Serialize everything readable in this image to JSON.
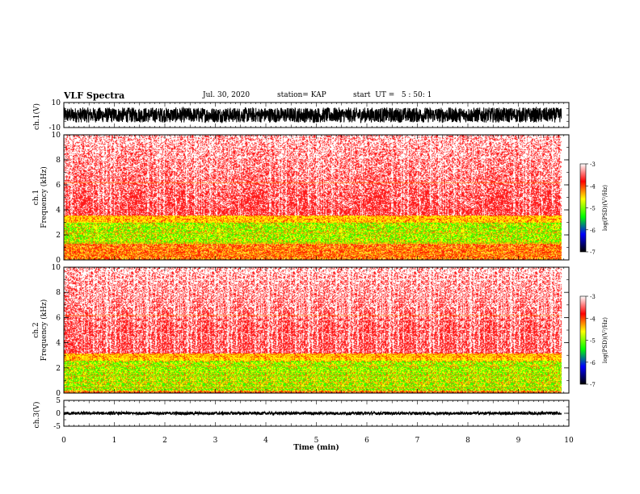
{
  "header": {
    "title": "VLF Spectra",
    "date": "Jul. 30, 2020",
    "station": "station= KAP",
    "start": "start  UT =   5 : 50: 1"
  },
  "chart_data": [
    {
      "type": "line",
      "panel": "waveform-ch1",
      "ylabel": "ch.1(V)",
      "ylim": [
        -10,
        10
      ],
      "ytick_labels": [
        "10",
        "-10"
      ],
      "xlim": [
        0,
        10
      ],
      "series": [
        {
          "x_range": [
            0,
            9.85
          ],
          "amplitude_range": [
            -6,
            6
          ]
        }
      ]
    },
    {
      "type": "heatmap",
      "panel": "spectrogram-ch1",
      "ylabel_lines": [
        "ch.1",
        "Frequency  (kHz)"
      ],
      "ylim": [
        0,
        10
      ],
      "ytick_labels": [
        "0",
        "2",
        "4",
        "6",
        "8",
        "10"
      ],
      "xlim": [
        0,
        10
      ],
      "x_data_range": [
        0,
        9.85
      ],
      "band_edges_khz": {
        "green_low": 1.3,
        "green_high": 3.0,
        "yellow_top": 3.6,
        "red_top": 10
      },
      "colorbar": {
        "label": "log(PSD)(V²/Hz)",
        "ticks": [
          "-3",
          "-4",
          "-5",
          "-6",
          "-7"
        ],
        "range": [
          -7,
          -3
        ]
      }
    },
    {
      "type": "heatmap",
      "panel": "spectrogram-ch2",
      "ylabel_lines": [
        "ch.2",
        "Frequency  (kHz)"
      ],
      "ylim": [
        0,
        10
      ],
      "ytick_labels": [
        "0",
        "2",
        "4",
        "6",
        "8",
        "10"
      ],
      "xlim": [
        0,
        10
      ],
      "x_data_range": [
        0,
        9.85
      ],
      "band_edges_khz": {
        "green_low": 0.2,
        "green_high": 2.6,
        "yellow_top": 3.2,
        "red_top": 10
      },
      "colorbar": {
        "label": "log(PSD)(V²/Hz)",
        "ticks": [
          "-3",
          "-4",
          "-5",
          "-6",
          "-7"
        ],
        "range": [
          -7,
          -3
        ]
      }
    },
    {
      "type": "line",
      "panel": "waveform-ch3",
      "ylabel": "ch.3(V)",
      "ylim": [
        -5,
        5
      ],
      "ytick_labels": [
        "5",
        "0",
        "-5"
      ],
      "xlim": [
        0,
        10
      ],
      "series": [
        {
          "x_range": [
            0,
            9.85
          ],
          "amplitude_range": [
            -0.6,
            0.6
          ]
        }
      ]
    }
  ],
  "xaxis": {
    "label": "Time  (min)",
    "ticks": [
      "0",
      "1",
      "2",
      "3",
      "4",
      "5",
      "6",
      "7",
      "8",
      "9",
      "10"
    ],
    "range": [
      0,
      10
    ]
  },
  "colors": {
    "line": "#000000",
    "background": "#ffffff",
    "colormap": [
      "#000000",
      "#0000ff",
      "#00ff00",
      "#ffff00",
      "#ff0000",
      "#ffffff"
    ]
  }
}
